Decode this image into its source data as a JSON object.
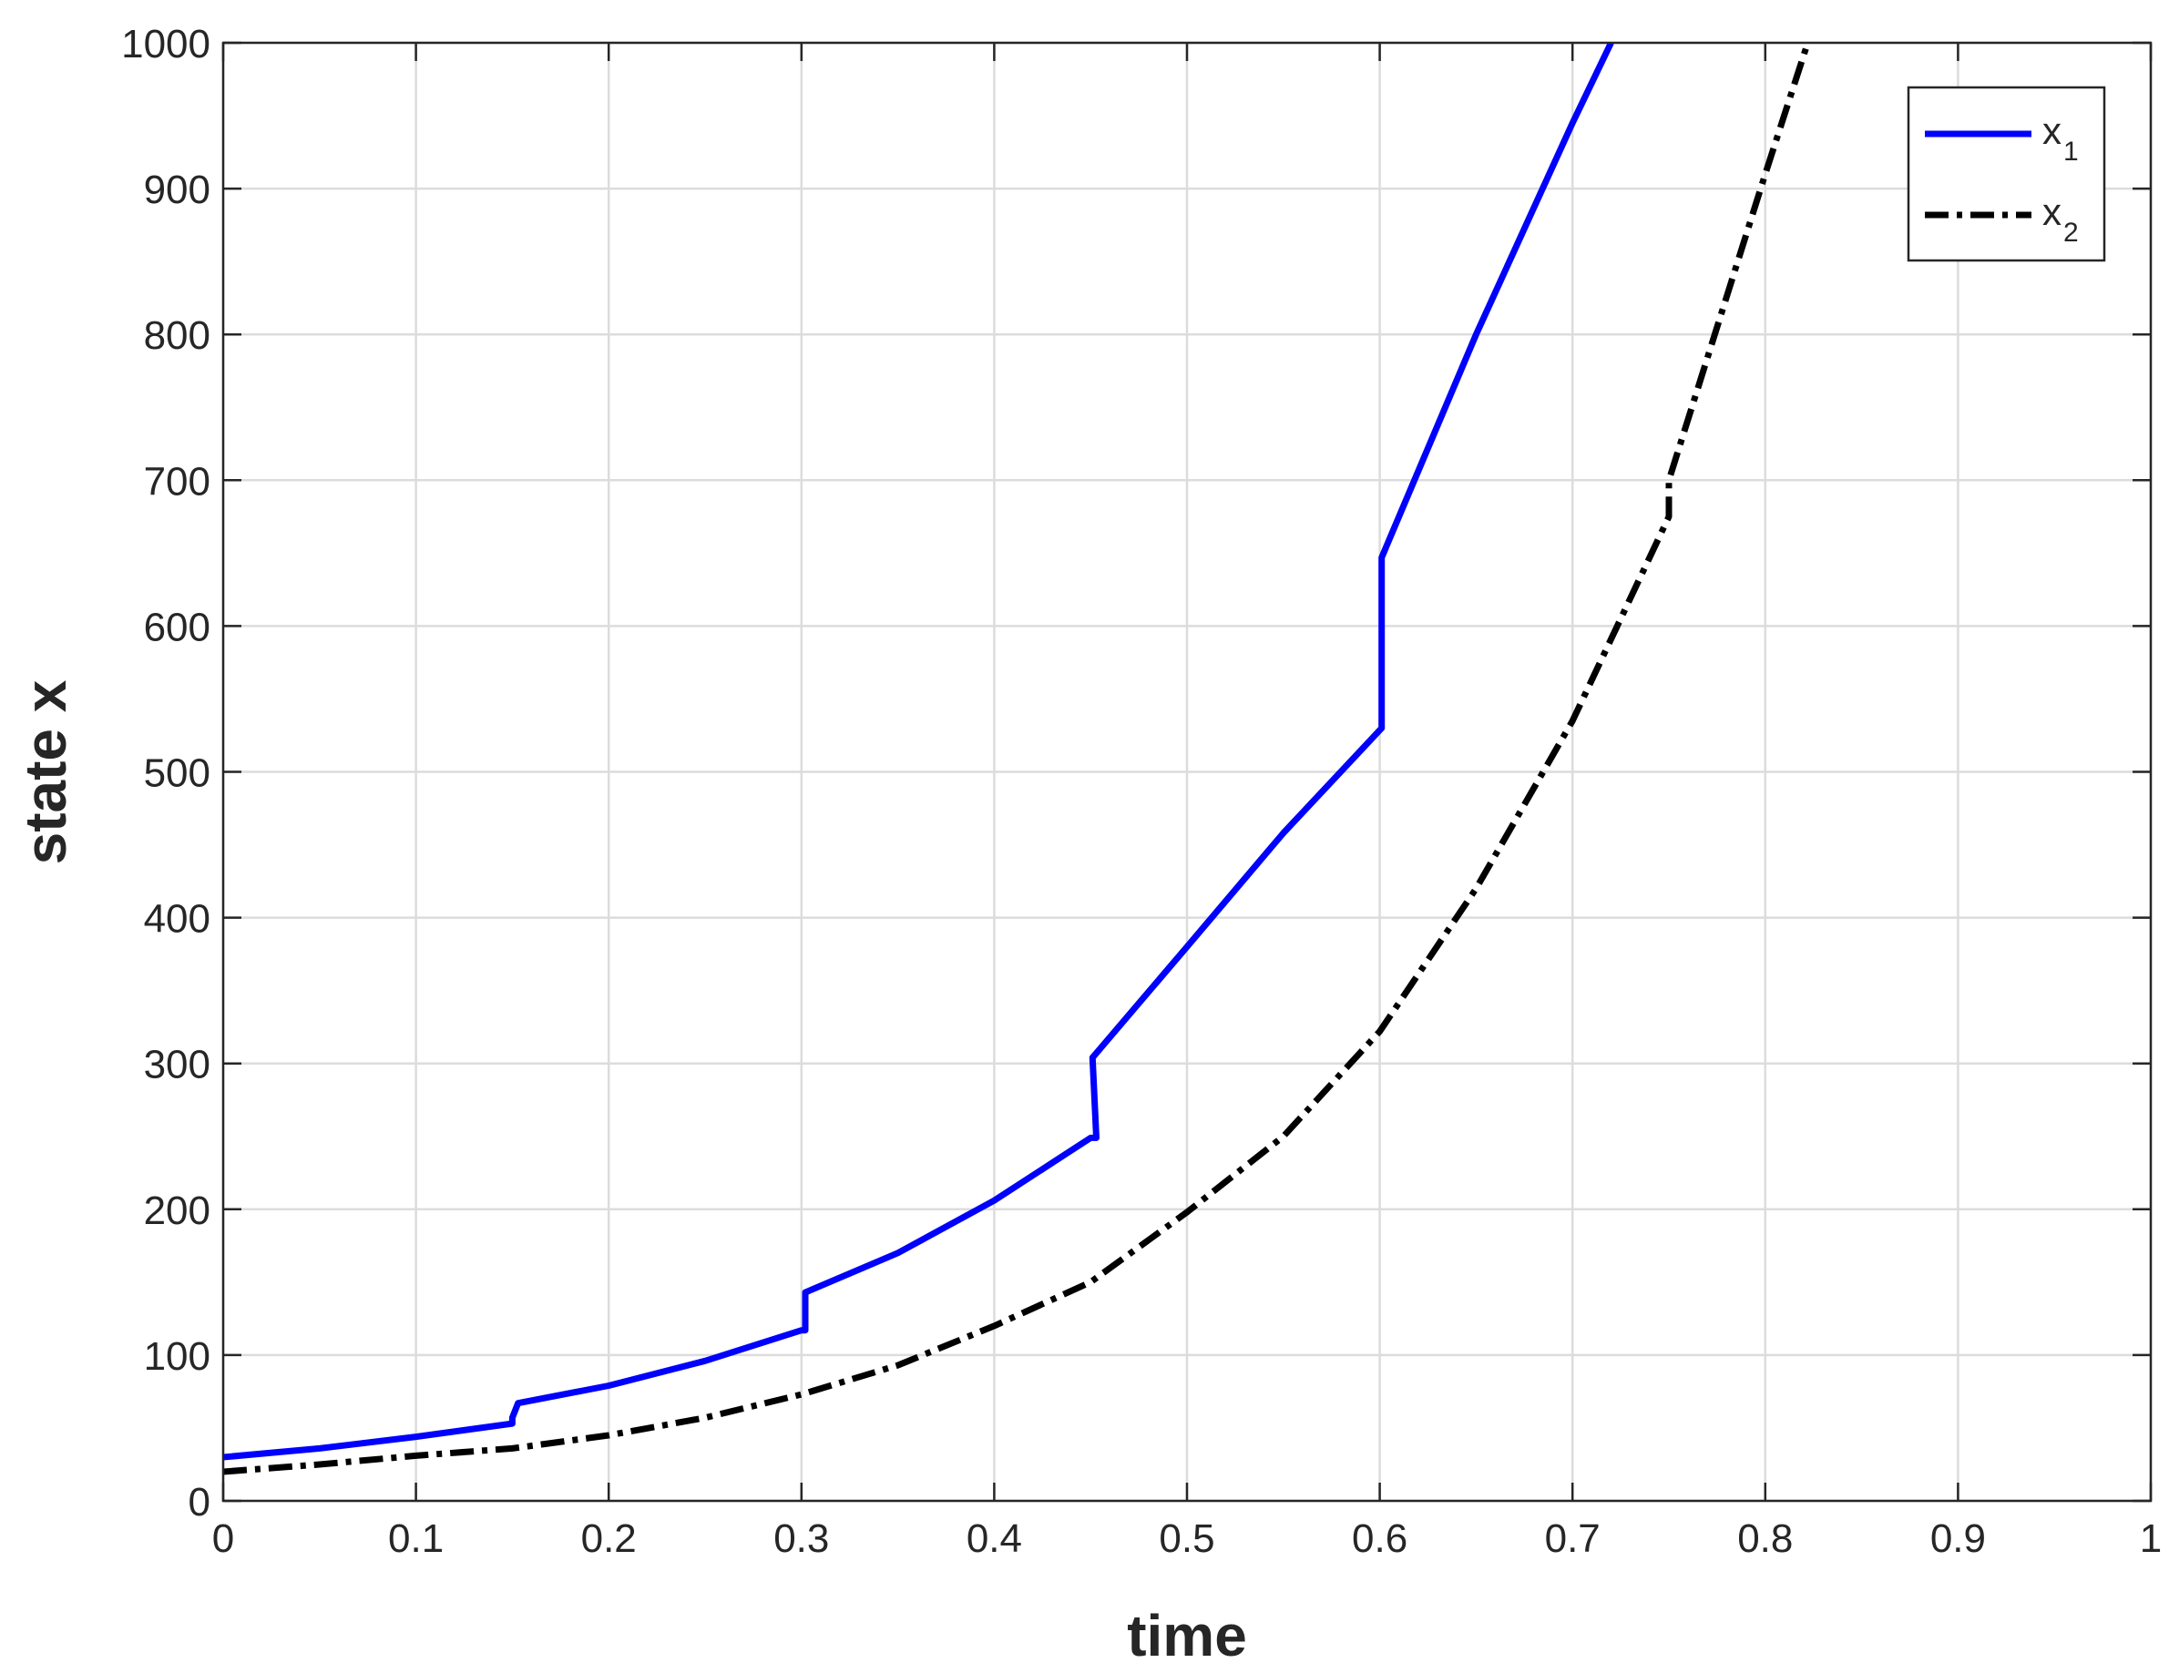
{
  "chart_data": {
    "type": "line",
    "xlabel": "time",
    "ylabel": "state x",
    "xlim": [
      0,
      1
    ],
    "ylim": [
      0,
      1000
    ],
    "xticks": [
      "0",
      "0.1",
      "0.2",
      "0.3",
      "0.4",
      "0.5",
      "0.6",
      "0.7",
      "0.8",
      "0.9",
      "1"
    ],
    "yticks": [
      "0",
      "100",
      "200",
      "300",
      "400",
      "500",
      "600",
      "700",
      "800",
      "900",
      "1000"
    ],
    "grid": true,
    "legend_position": "top-right",
    "series": [
      {
        "name": "x",
        "name_subscript": "1",
        "color": "#0000ff",
        "style": "solid",
        "x": [
          0,
          0.05,
          0.1,
          0.15,
          0.15,
          0.153,
          0.2,
          0.25,
          0.3,
          0.302,
          0.302,
          0.35,
          0.4,
          0.45,
          0.453,
          0.451,
          0.5,
          0.55,
          0.601,
          0.601,
          0.65,
          0.7,
          0.72
        ],
        "y": [
          30,
          36,
          44,
          53,
          57,
          67,
          79,
          96,
          117,
          117,
          143,
          170,
          206,
          249,
          249,
          304,
          380,
          458,
          530,
          647,
          800,
          945,
          1000
        ]
      },
      {
        "name": "x",
        "name_subscript": "2",
        "color": "#000000",
        "style": "dashdot",
        "x": [
          0,
          0.05,
          0.1,
          0.15,
          0.2,
          0.25,
          0.3,
          0.35,
          0.4,
          0.45,
          0.5,
          0.55,
          0.6,
          0.65,
          0.7,
          0.75,
          0.75,
          0.8,
          0.822
        ],
        "y": [
          20,
          25,
          31,
          36,
          45,
          57,
          73,
          93,
          120,
          150,
          198,
          250,
          322,
          420,
          535,
          675,
          700,
          910,
          1000
        ]
      }
    ]
  }
}
